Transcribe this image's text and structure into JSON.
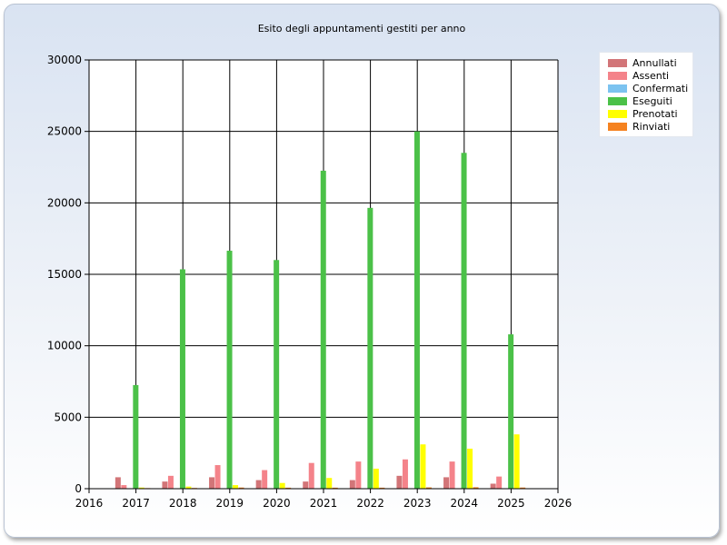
{
  "chart_data": {
    "type": "bar",
    "title": "Esito degli appuntamenti gestiti per anno",
    "xlabel": "",
    "ylabel": "",
    "xlim": [
      2016,
      2026
    ],
    "ylim": [
      0,
      30000
    ],
    "x_ticks": [
      "2016",
      "2017",
      "2018",
      "2019",
      "2020",
      "2021",
      "2022",
      "2023",
      "2024",
      "2025",
      "2026"
    ],
    "y_ticks": [
      "0",
      "5000",
      "10000",
      "15000",
      "20000",
      "25000",
      "30000"
    ],
    "grid": true,
    "legend_position": "top-right",
    "categories": [
      "2017",
      "2018",
      "2019",
      "2020",
      "2021",
      "2022",
      "2023",
      "2024",
      "2025"
    ],
    "series": [
      {
        "name": "Annullati",
        "color": "#d27578",
        "values": [
          800,
          500,
          800,
          600,
          500,
          600,
          900,
          800,
          350
        ]
      },
      {
        "name": "Assenti",
        "color": "#f4838a",
        "values": [
          250,
          900,
          1650,
          1300,
          1800,
          1900,
          2050,
          1900,
          850
        ]
      },
      {
        "name": "Confermati",
        "color": "#7cc3f0",
        "values": [
          0,
          0,
          0,
          0,
          0,
          0,
          0,
          0,
          0
        ]
      },
      {
        "name": "Eseguiti",
        "color": "#4bc148",
        "values": [
          7250,
          15350,
          16650,
          16000,
          22250,
          19650,
          25000,
          23500,
          10800
        ]
      },
      {
        "name": "Prenotati",
        "color": "#ffff00",
        "values": [
          80,
          150,
          250,
          400,
          750,
          1400,
          3100,
          2800,
          3800
        ]
      },
      {
        "name": "Rinviati",
        "color": "#f58220",
        "values": [
          40,
          50,
          80,
          70,
          70,
          70,
          90,
          100,
          80
        ]
      }
    ]
  }
}
